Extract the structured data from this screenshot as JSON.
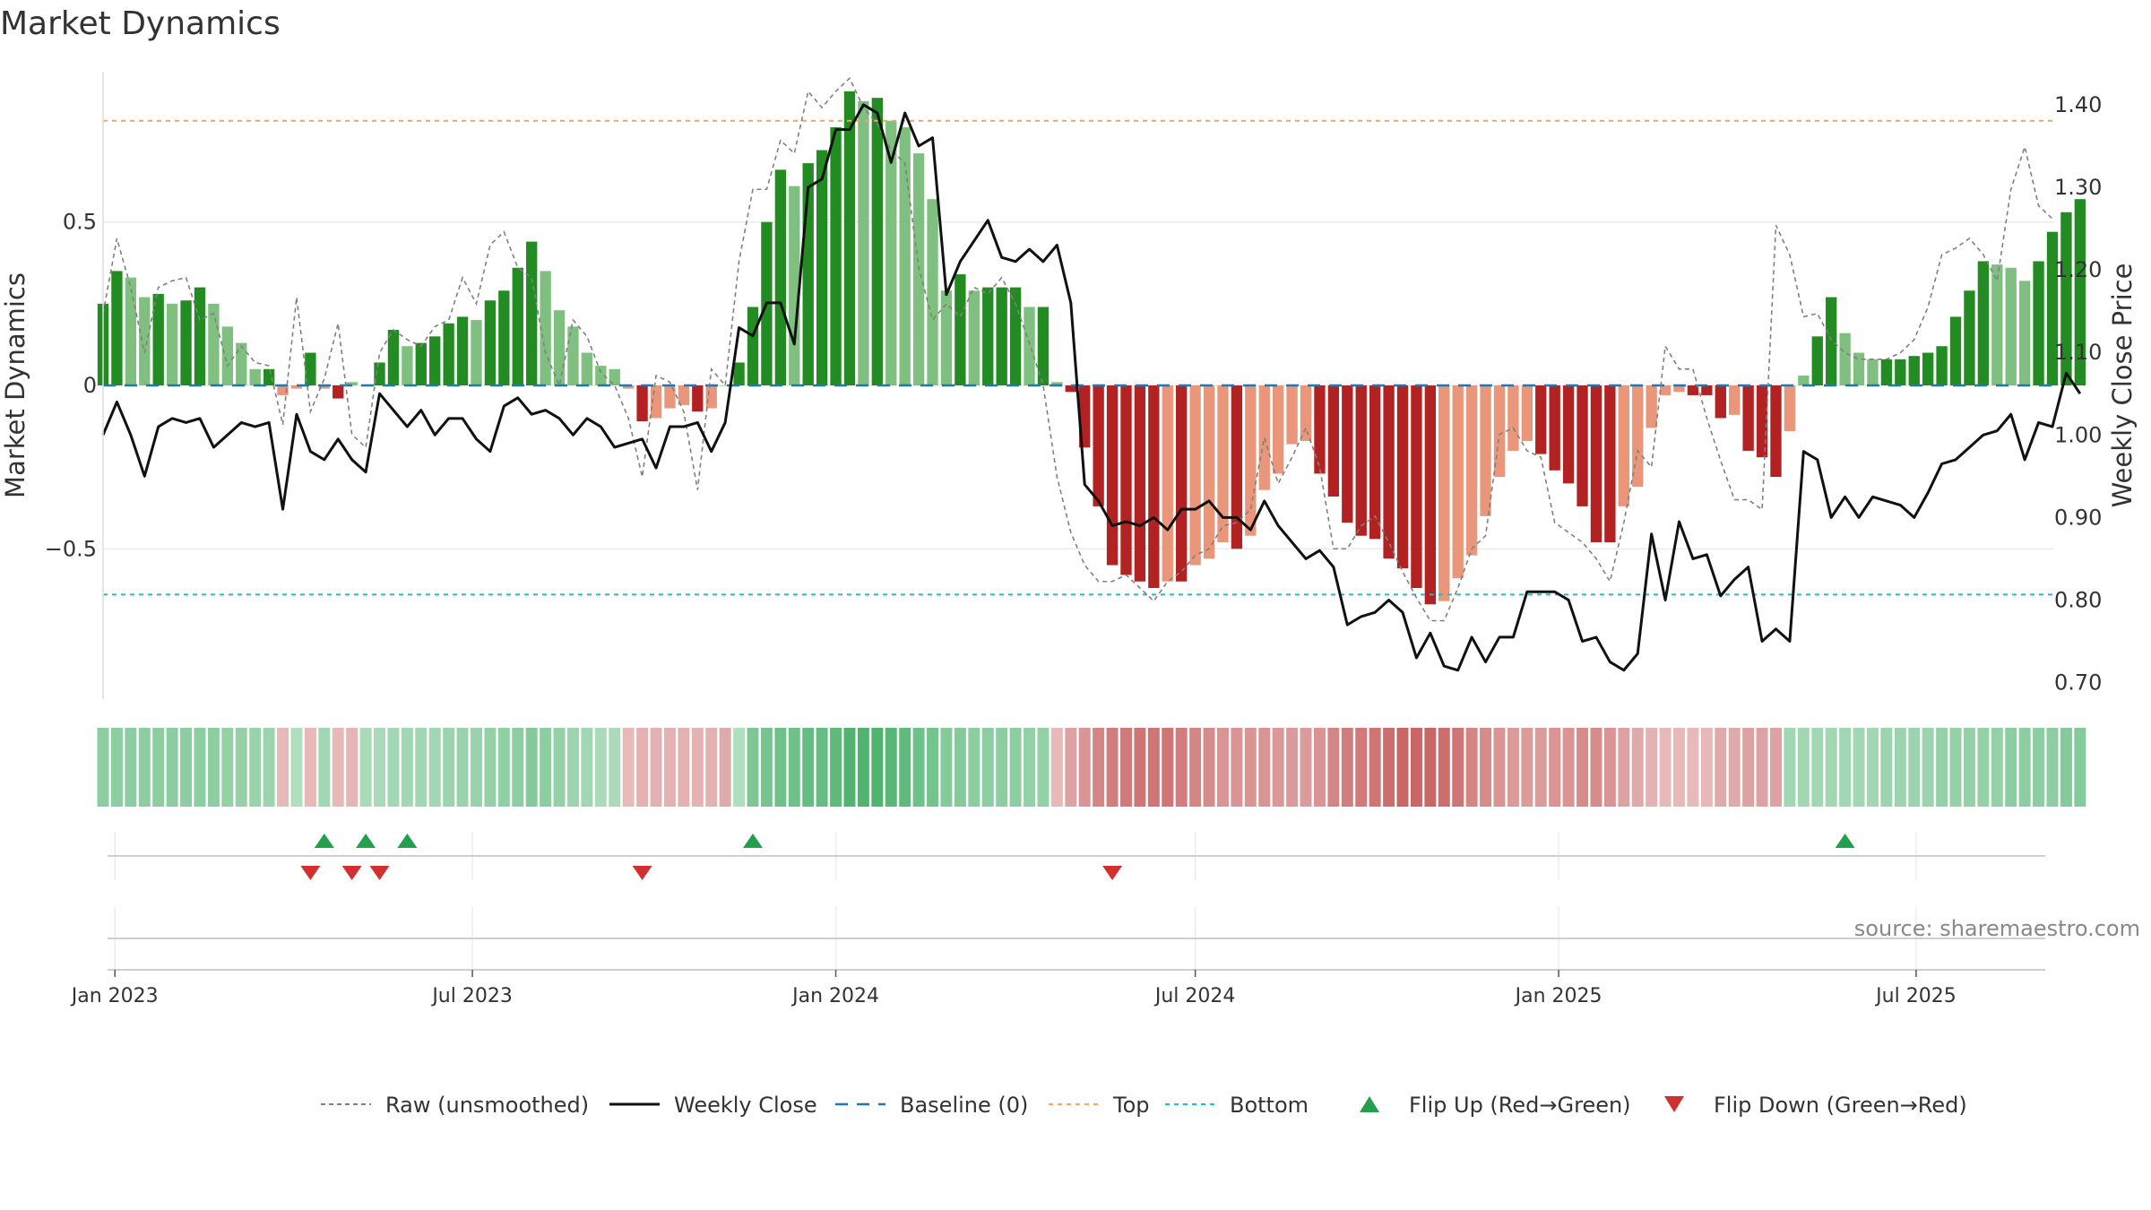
{
  "chart_data": {
    "type": "bar",
    "title": "Market Dynamics",
    "ylabel_left": "Market Dynamics",
    "ylabel_right": "Weekly Close Price",
    "ylim_left": [
      -0.96,
      0.96
    ],
    "ylim_right": [
      0.68,
      1.44
    ],
    "yticks_left": [
      {
        "v": 0.5,
        "label": "0.5"
      },
      {
        "v": 0,
        "label": "0"
      },
      {
        "v": -0.5,
        "label": "−0.5"
      }
    ],
    "yticks_right": [
      {
        "v": 1.4,
        "label": "1.40"
      },
      {
        "v": 1.3,
        "label": "1.30"
      },
      {
        "v": 1.2,
        "label": "1.20"
      },
      {
        "v": 1.1,
        "label": "1.10"
      },
      {
        "v": 1.0,
        "label": "1.00"
      },
      {
        "v": 0.9,
        "label": "0.90"
      },
      {
        "v": 0.8,
        "label": "0.80"
      },
      {
        "v": 0.7,
        "label": "0.70"
      }
    ],
    "x_start": "2022-12-26",
    "x_end": "2025-09-08",
    "xticks": [
      {
        "date": "2023-01-01",
        "label": "Jan 2023"
      },
      {
        "date": "2023-07-01",
        "label": "Jul 2023"
      },
      {
        "date": "2024-01-01",
        "label": "Jan 2024"
      },
      {
        "date": "2024-07-01",
        "label": "Jul 2024"
      },
      {
        "date": "2025-01-01",
        "label": "Jan 2025"
      },
      {
        "date": "2025-07-01",
        "label": "Jul 2025"
      }
    ],
    "week_start": "2022-12-26",
    "top_threshold": 0.81,
    "bottom_threshold": -0.64,
    "baseline": 0,
    "colors": {
      "up_strong": "#228b22",
      "up_weak": "#7fbf7f",
      "down_strong": "#b22222",
      "down_weak": "#e9967a",
      "raw": "#808080",
      "close": "#111111",
      "baseline": "#1f77b4",
      "top": "#f4a460",
      "bottom": "#17becf",
      "flip_up": "#22a04b",
      "flip_down": "#d32f2f"
    },
    "series": [
      {
        "name": "Market Dynamics",
        "values": [
          0.25,
          0.35,
          0.33,
          0.27,
          0.28,
          0.25,
          0.26,
          0.3,
          0.25,
          0.18,
          0.13,
          0.05,
          0.05,
          -0.03,
          -0.01,
          0.1,
          -0.01,
          -0.04,
          0.01,
          0.0,
          0.07,
          0.17,
          0.12,
          0.13,
          0.15,
          0.19,
          0.21,
          0.2,
          0.26,
          0.29,
          0.36,
          0.44,
          0.35,
          0.23,
          0.18,
          0.1,
          0.06,
          0.05,
          -0.01,
          -0.11,
          -0.1,
          -0.07,
          -0.06,
          -0.08,
          -0.07,
          0.0,
          0.07,
          0.24,
          0.5,
          0.66,
          0.61,
          0.68,
          0.72,
          0.79,
          0.9,
          0.87,
          0.88,
          0.81,
          0.79,
          0.71,
          0.57,
          0.29,
          0.34,
          0.29,
          0.3,
          0.3,
          0.3,
          0.24,
          0.24,
          0.01,
          -0.02,
          -0.19,
          -0.37,
          -0.55,
          -0.58,
          -0.6,
          -0.62,
          -0.6,
          -0.6,
          -0.55,
          -0.53,
          -0.48,
          -0.5,
          -0.46,
          -0.32,
          -0.27,
          -0.18,
          -0.17,
          -0.27,
          -0.34,
          -0.42,
          -0.46,
          -0.47,
          -0.53,
          -0.56,
          -0.62,
          -0.67,
          -0.66,
          -0.59,
          -0.52,
          -0.4,
          -0.28,
          -0.2,
          -0.17,
          -0.21,
          -0.26,
          -0.3,
          -0.37,
          -0.48,
          -0.48,
          -0.37,
          -0.31,
          -0.13,
          -0.03,
          -0.02,
          -0.03,
          -0.03,
          -0.1,
          -0.09,
          -0.2,
          -0.22,
          -0.28,
          -0.14,
          0.03,
          0.15,
          0.27,
          0.16,
          0.1,
          0.08,
          0.08,
          0.08,
          0.09,
          0.1,
          0.12,
          0.21,
          0.29,
          0.38,
          0.37,
          0.36,
          0.32,
          0.38,
          0.47,
          0.53,
          0.57
        ]
      },
      {
        "name": "Raw (unsmoothed)",
        "values": [
          0.22,
          0.45,
          0.3,
          0.1,
          0.3,
          0.32,
          0.33,
          0.2,
          0.22,
          0.06,
          0.12,
          0.07,
          0.06,
          -0.12,
          0.27,
          -0.08,
          0.02,
          0.19,
          -0.15,
          -0.19,
          0.1,
          0.17,
          0.14,
          0.12,
          0.18,
          0.2,
          0.33,
          0.25,
          0.43,
          0.47,
          0.36,
          0.33,
          0.1,
          0.0,
          0.2,
          0.15,
          0.04,
          0.0,
          -0.1,
          -0.28,
          0.03,
          0.01,
          -0.08,
          -0.32,
          0.05,
          0.0,
          0.38,
          0.6,
          0.6,
          0.75,
          0.71,
          0.9,
          0.85,
          0.9,
          0.94,
          0.85,
          0.8,
          0.72,
          0.68,
          0.36,
          0.2,
          0.25,
          0.21,
          0.3,
          0.28,
          0.33,
          0.25,
          0.13,
          0.0,
          -0.28,
          -0.45,
          -0.55,
          -0.6,
          -0.6,
          -0.58,
          -0.62,
          -0.66,
          -0.6,
          -0.57,
          -0.52,
          -0.5,
          -0.43,
          -0.42,
          -0.38,
          -0.16,
          -0.3,
          -0.22,
          -0.13,
          -0.25,
          -0.5,
          -0.5,
          -0.43,
          -0.4,
          -0.48,
          -0.57,
          -0.65,
          -0.72,
          -0.72,
          -0.62,
          -0.5,
          -0.46,
          -0.15,
          -0.13,
          -0.2,
          -0.22,
          -0.42,
          -0.45,
          -0.48,
          -0.53,
          -0.6,
          -0.42,
          -0.2,
          -0.25,
          0.12,
          0.05,
          0.05,
          -0.1,
          -0.23,
          -0.35,
          -0.35,
          -0.38,
          0.49,
          0.4,
          0.21,
          0.22,
          0.14,
          0.1,
          0.08,
          0.08,
          0.08,
          0.1,
          0.14,
          0.24,
          0.4,
          0.42,
          0.45,
          0.4,
          0.32,
          0.6,
          0.73,
          0.55,
          0.51
        ]
      },
      {
        "name": "Weekly Close",
        "values": [
          1.0,
          1.04,
          1.0,
          0.95,
          1.01,
          1.02,
          1.015,
          1.02,
          0.985,
          1.0,
          1.015,
          1.01,
          1.015,
          0.91,
          1.025,
          0.98,
          0.97,
          0.995,
          0.97,
          0.955,
          1.05,
          1.03,
          1.01,
          1.03,
          1.0,
          1.02,
          1.02,
          0.995,
          0.98,
          1.035,
          1.045,
          1.025,
          1.03,
          1.02,
          1.0,
          1.02,
          1.01,
          0.985,
          0.99,
          0.995,
          0.96,
          1.01,
          1.01,
          1.015,
          0.98,
          1.015,
          1.13,
          1.12,
          1.16,
          1.16,
          1.11,
          1.3,
          1.31,
          1.37,
          1.37,
          1.4,
          1.39,
          1.33,
          1.39,
          1.35,
          1.36,
          1.17,
          1.21,
          1.235,
          1.26,
          1.215,
          1.21,
          1.225,
          1.21,
          1.23,
          1.16,
          0.94,
          0.92,
          0.89,
          0.895,
          0.89,
          0.9,
          0.885,
          0.91,
          0.91,
          0.92,
          0.9,
          0.9,
          0.885,
          0.92,
          0.89,
          0.87,
          0.85,
          0.86,
          0.84,
          0.77,
          0.78,
          0.785,
          0.8,
          0.785,
          0.73,
          0.76,
          0.72,
          0.715,
          0.755,
          0.725,
          0.755,
          0.755,
          0.81,
          0.81,
          0.81,
          0.8,
          0.75,
          0.755,
          0.725,
          0.715,
          0.735,
          0.88,
          0.8,
          0.895,
          0.85,
          0.855,
          0.805,
          0.825,
          0.84,
          0.75,
          0.765,
          0.75,
          0.98,
          0.97,
          0.9,
          0.925,
          0.9,
          0.925,
          0.92,
          0.915,
          0.9,
          0.93,
          0.965,
          0.97,
          0.985,
          1.0,
          1.005,
          1.025,
          0.97,
          1.015,
          1.01,
          1.075,
          1.05
        ]
      }
    ],
    "strength_strip": [
      0.5,
      0.5,
      0.5,
      0.5,
      0.5,
      0.5,
      0.5,
      0.5,
      0.5,
      0.45,
      0.45,
      0.42,
      0.4,
      -0.2,
      0.25,
      -0.2,
      0.35,
      -0.2,
      -0.22,
      0.3,
      0.3,
      0.35,
      0.35,
      0.35,
      0.35,
      0.4,
      0.42,
      0.42,
      0.45,
      0.48,
      0.5,
      0.55,
      0.5,
      0.45,
      0.4,
      0.35,
      0.3,
      0.3,
      -0.2,
      -0.25,
      -0.25,
      -0.25,
      -0.25,
      -0.25,
      -0.25,
      -0.3,
      0.25,
      0.6,
      0.65,
      0.7,
      0.7,
      0.75,
      0.75,
      0.8,
      0.9,
      0.9,
      0.9,
      0.85,
      0.8,
      0.7,
      0.65,
      0.55,
      0.55,
      0.5,
      0.5,
      0.5,
      0.5,
      0.45,
      0.45,
      -0.2,
      -0.35,
      -0.45,
      -0.55,
      -0.6,
      -0.62,
      -0.65,
      -0.65,
      -0.65,
      -0.6,
      -0.55,
      -0.5,
      -0.45,
      -0.45,
      -0.45,
      -0.45,
      -0.42,
      -0.4,
      -0.4,
      -0.45,
      -0.55,
      -0.6,
      -0.62,
      -0.65,
      -0.7,
      -0.75,
      -0.75,
      -0.75,
      -0.7,
      -0.65,
      -0.55,
      -0.5,
      -0.45,
      -0.4,
      -0.4,
      -0.4,
      -0.45,
      -0.45,
      -0.5,
      -0.5,
      -0.45,
      -0.35,
      -0.3,
      -0.25,
      -0.2,
      -0.2,
      -0.2,
      -0.2,
      -0.3,
      -0.3,
      -0.35,
      -0.35,
      -0.35,
      0.35,
      0.35,
      0.35,
      0.35,
      0.35,
      0.35,
      0.35,
      0.4,
      0.4,
      0.4,
      0.4,
      0.45,
      0.45,
      0.45,
      0.45,
      0.45,
      0.5,
      0.5,
      0.5,
      0.5,
      0.55,
      0.55
    ],
    "flips_up": [
      "2023-04-17",
      "2023-05-08",
      "2023-05-29",
      "2023-11-20",
      "2025-05-26"
    ],
    "flips_down": [
      "2023-04-10",
      "2023-05-01",
      "2023-05-15",
      "2023-09-25",
      "2024-05-20"
    ],
    "legend": [
      {
        "label": "Raw (unsmoothed)",
        "kind": "raw"
      },
      {
        "label": "Weekly Close",
        "kind": "close"
      },
      {
        "label": "Baseline (0)",
        "kind": "baseline"
      },
      {
        "label": "Top",
        "kind": "top"
      },
      {
        "label": "Bottom",
        "kind": "bottom"
      },
      {
        "label": "Flip Up (Red→Green)",
        "kind": "flip_up"
      },
      {
        "label": "Flip Down (Green→Red)",
        "kind": "flip_down"
      }
    ],
    "legend_placement": "bottom-center",
    "grid": true
  },
  "source": "source: sharemaestro.com"
}
